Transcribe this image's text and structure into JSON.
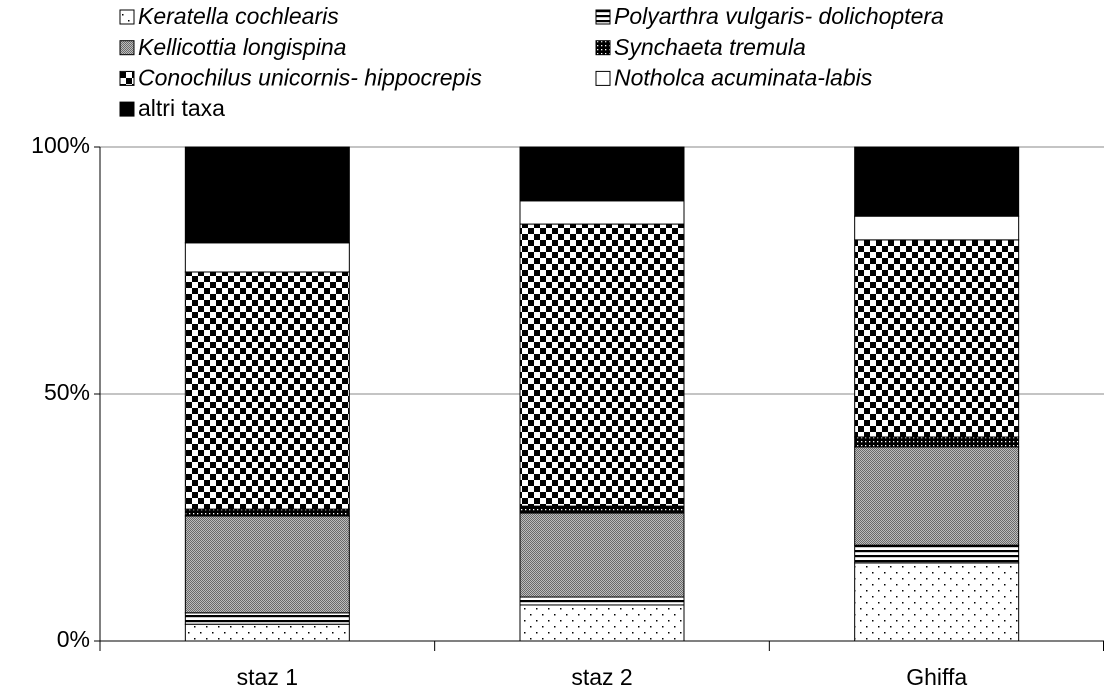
{
  "chart_data": {
    "type": "stacked_bar",
    "categories": [
      "staz 1",
      "staz 2",
      "Ghiffa"
    ],
    "series": [
      {
        "name": "Keratella cochlearis",
        "pattern": "dots",
        "italic": true,
        "values": [
          3.4,
          7.3,
          15.8
        ]
      },
      {
        "name": "Polyarthra vulgaris- dolichoptera",
        "pattern": "hlines",
        "italic": true,
        "values": [
          2.3,
          1.6,
          3.6
        ]
      },
      {
        "name": "Kellicottia longispina",
        "pattern": "gray",
        "italic": true,
        "values": [
          19.6,
          17,
          19.9
        ]
      },
      {
        "name": "Synchaeta tremula",
        "pattern": "dense",
        "italic": true,
        "values": [
          1.4,
          1.4,
          2
        ]
      },
      {
        "name": "Conochilus unicornis- hippocrepis",
        "pattern": "checker",
        "italic": true,
        "values": [
          48,
          57.1,
          39.9
        ]
      },
      {
        "name": "Notholca acuminata-labis",
        "pattern": "white",
        "italic": true,
        "values": [
          5.9,
          4.7,
          4.8
        ]
      },
      {
        "name": "altri taxa",
        "pattern": "black",
        "italic": false,
        "values": [
          19.4,
          10.9,
          14
        ]
      }
    ],
    "ylim": [
      0,
      100
    ],
    "yticks": [
      {
        "value": 0,
        "label": "0%"
      },
      {
        "value": 50,
        "label": "50%"
      },
      {
        "value": 100,
        "label": "100%"
      }
    ],
    "grid": true
  }
}
